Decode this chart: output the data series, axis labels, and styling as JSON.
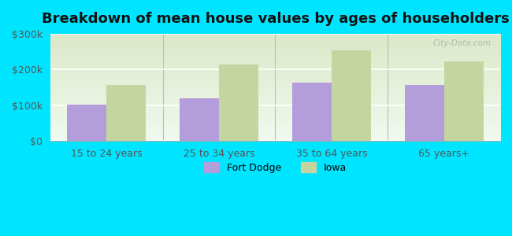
{
  "title": "Breakdown of mean house values by ages of householders",
  "categories": [
    "15 to 24 years",
    "25 to 34 years",
    "35 to 64 years",
    "65 years+"
  ],
  "fort_dodge": [
    103000,
    120000,
    163000,
    158000
  ],
  "iowa": [
    158000,
    215000,
    253000,
    222000
  ],
  "fort_dodge_color": "#b39ddb",
  "iowa_color": "#c5d5a0",
  "ylim": [
    0,
    300000
  ],
  "yticks": [
    0,
    100000,
    200000,
    300000
  ],
  "ytick_labels": [
    "$0",
    "$100k",
    "$200k",
    "$300k"
  ],
  "background_outer": "#00e5ff",
  "background_inner_top": "#dce8c8",
  "background_inner_bottom": "#f0faf0",
  "legend_labels": [
    "Fort Dodge",
    "Iowa"
  ],
  "bar_width": 0.35,
  "title_fontsize": 13,
  "watermark": "City-Data.com"
}
